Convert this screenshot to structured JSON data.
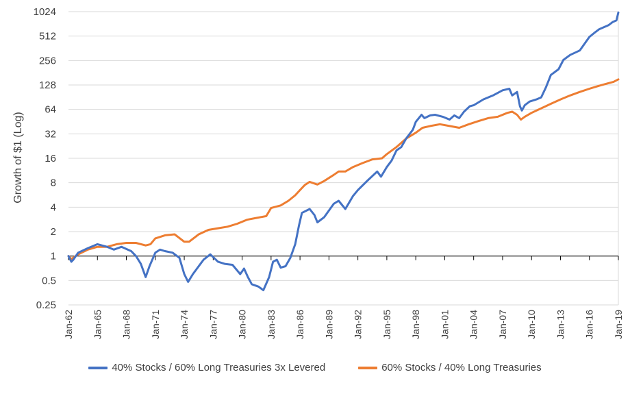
{
  "chart_data": {
    "type": "line",
    "ylabel": "Growth of $1 (Log)",
    "yscale": "log2",
    "ylim": [
      0.25,
      1024
    ],
    "yticks": [
      {
        "value": 0.25,
        "label": "0.25"
      },
      {
        "value": 0.5,
        "label": "0.5"
      },
      {
        "value": 1,
        "label": "1"
      },
      {
        "value": 2,
        "label": "2"
      },
      {
        "value": 4,
        "label": "4"
      },
      {
        "value": 8,
        "label": "8"
      },
      {
        "value": 16,
        "label": "16"
      },
      {
        "value": 32,
        "label": "32"
      },
      {
        "value": 64,
        "label": "64"
      },
      {
        "value": 128,
        "label": "128"
      },
      {
        "value": 256,
        "label": "256"
      },
      {
        "value": 512,
        "label": "512"
      },
      {
        "value": 1024,
        "label": "1024"
      }
    ],
    "xlim": [
      1962,
      2019
    ],
    "xticks": [
      {
        "value": 1962,
        "label": "Jan-62"
      },
      {
        "value": 1965,
        "label": "Jan-65"
      },
      {
        "value": 1968,
        "label": "Jan-68"
      },
      {
        "value": 1971,
        "label": "Jan-71"
      },
      {
        "value": 1974,
        "label": "Jan-74"
      },
      {
        "value": 1977,
        "label": "Jan-77"
      },
      {
        "value": 1980,
        "label": "Jan-80"
      },
      {
        "value": 1983,
        "label": "Jan-83"
      },
      {
        "value": 1986,
        "label": "Jan-86"
      },
      {
        "value": 1989,
        "label": "Jan-89"
      },
      {
        "value": 1992,
        "label": "Jan-92"
      },
      {
        "value": 1995,
        "label": "Jan-95"
      },
      {
        "value": 1998,
        "label": "Jan-98"
      },
      {
        "value": 2001,
        "label": "Jan-01"
      },
      {
        "value": 2004,
        "label": "Jan-04"
      },
      {
        "value": 2007,
        "label": "Jan-07"
      },
      {
        "value": 2010,
        "label": "Jan-10"
      },
      {
        "value": 2013,
        "label": "Jan-13"
      },
      {
        "value": 2016,
        "label": "Jan-16"
      },
      {
        "value": 2019,
        "label": "Jan-19"
      }
    ],
    "grid": true,
    "legend_position": "bottom",
    "series": [
      {
        "name": "40% Stocks / 60% Long Treasuries 3x Levered",
        "color": "#4472C4",
        "x": [
          1962.0,
          1962.3,
          1962.5,
          1963.0,
          1964.0,
          1965.0,
          1966.0,
          1966.7,
          1967.5,
          1968.5,
          1969.0,
          1969.5,
          1970.0,
          1970.4,
          1971.0,
          1971.5,
          1972.0,
          1972.8,
          1973.5,
          1974.0,
          1974.4,
          1974.9,
          1975.5,
          1976.0,
          1976.7,
          1977.5,
          1978.2,
          1979.0,
          1979.8,
          1980.2,
          1980.6,
          1981.0,
          1981.7,
          1982.2,
          1982.8,
          1983.2,
          1983.6,
          1984.0,
          1984.5,
          1985.0,
          1985.5,
          1985.9,
          1986.2,
          1987.0,
          1987.5,
          1987.8,
          1988.5,
          1989.5,
          1990.0,
          1990.7,
          1991.5,
          1992.0,
          1993.0,
          1994.0,
          1994.4,
          1995.0,
          1995.5,
          1996.0,
          1996.5,
          1997.0,
          1997.7,
          1998.0,
          1998.6,
          1998.9,
          1999.5,
          2000.0,
          2000.8,
          2001.5,
          2002.0,
          2002.5,
          2003.0,
          2003.6,
          2004.0,
          2005.0,
          2006.0,
          2007.0,
          2007.7,
          2008.0,
          2008.5,
          2008.8,
          2009.0,
          2009.3,
          2009.8,
          2010.5,
          2011.0,
          2011.5,
          2012.0,
          2012.8,
          2013.3,
          2014.0,
          2015.0,
          2016.0,
          2016.5,
          2017.0,
          2018.0,
          2018.4,
          2018.8,
          2019.0
        ],
        "values": [
          1.0,
          0.85,
          0.9,
          1.1,
          1.25,
          1.4,
          1.3,
          1.2,
          1.3,
          1.15,
          1.0,
          0.8,
          0.55,
          0.75,
          1.1,
          1.2,
          1.15,
          1.1,
          0.95,
          0.6,
          0.48,
          0.6,
          0.75,
          0.9,
          1.05,
          0.85,
          0.8,
          0.78,
          0.6,
          0.7,
          0.55,
          0.45,
          0.42,
          0.38,
          0.55,
          0.85,
          0.9,
          0.72,
          0.75,
          0.95,
          1.4,
          2.4,
          3.4,
          3.8,
          3.2,
          2.6,
          3.0,
          4.4,
          4.8,
          3.8,
          5.5,
          6.5,
          8.5,
          11.0,
          9.5,
          12.5,
          15.0,
          20.0,
          22.0,
          28.0,
          36.0,
          45.0,
          55.0,
          50.0,
          54.0,
          55.0,
          52.0,
          48.0,
          54.0,
          50.0,
          60.0,
          70.0,
          72.0,
          85.0,
          95.0,
          110.0,
          115.0,
          95.0,
          105.0,
          70.0,
          62.0,
          72.0,
          80.0,
          85.0,
          90.0,
          120.0,
          170.0,
          200.0,
          260.0,
          300.0,
          340.0,
          500.0,
          560.0,
          620.0,
          700.0,
          760.0,
          800.0,
          1000.0
        ]
      },
      {
        "name": "60% Stocks / 40% Long Treasuries",
        "color": "#ED7D31",
        "x": [
          1962.0,
          1962.3,
          1963.0,
          1964.0,
          1965.0,
          1966.0,
          1967.0,
          1968.0,
          1969.0,
          1970.0,
          1970.5,
          1971.0,
          1972.0,
          1973.0,
          1974.0,
          1974.5,
          1975.5,
          1976.5,
          1977.5,
          1978.5,
          1979.5,
          1980.5,
          1981.5,
          1982.5,
          1983.0,
          1984.0,
          1984.8,
          1985.5,
          1986.0,
          1986.5,
          1987.0,
          1987.8,
          1988.5,
          1989.5,
          1990.0,
          1990.7,
          1991.5,
          1992.5,
          1993.5,
          1994.5,
          1995.0,
          1996.0,
          1997.0,
          1998.0,
          1998.7,
          1999.5,
          2000.5,
          2001.5,
          2002.5,
          2003.5,
          2004.5,
          2005.5,
          2006.5,
          2007.5,
          2008.0,
          2008.5,
          2008.9,
          2009.3,
          2010.0,
          2011.0,
          2012.0,
          2013.0,
          2014.0,
          2015.0,
          2016.0,
          2017.0,
          2018.0,
          2018.5,
          2019.0
        ],
        "values": [
          1.0,
          0.92,
          1.05,
          1.2,
          1.3,
          1.3,
          1.4,
          1.45,
          1.45,
          1.35,
          1.4,
          1.65,
          1.8,
          1.85,
          1.5,
          1.5,
          1.85,
          2.1,
          2.2,
          2.3,
          2.5,
          2.8,
          2.95,
          3.1,
          3.9,
          4.2,
          4.8,
          5.6,
          6.5,
          7.5,
          8.2,
          7.6,
          8.4,
          10.0,
          11.0,
          11.0,
          12.5,
          14.0,
          15.5,
          16.0,
          18.0,
          22.0,
          28.0,
          33.0,
          38.0,
          40.0,
          42.0,
          40.0,
          38.0,
          42.0,
          46.0,
          50.0,
          52.0,
          58.0,
          60.0,
          55.0,
          48.0,
          52.0,
          58.0,
          66.0,
          75.0,
          85.0,
          95.0,
          105.0,
          115.0,
          125.0,
          135.0,
          140.0,
          150.0
        ]
      }
    ]
  }
}
